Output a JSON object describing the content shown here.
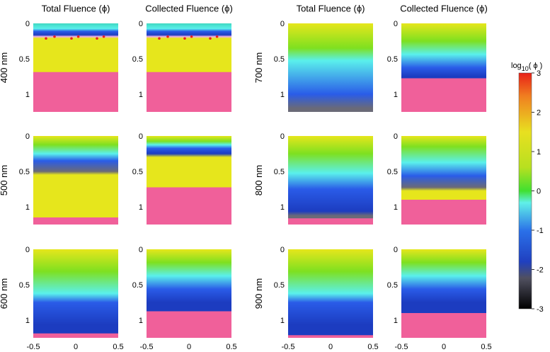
{
  "figure": {
    "column_titles": [
      "Total Fluence (ϕ)",
      "Collected Fluence (ϕ)",
      "Total Fluence (ϕ)",
      "Collected Fluence (ϕ)"
    ],
    "row_labels": [
      "400 nm",
      "500 nm",
      "600 nm",
      "700 nm",
      "800 nm",
      "900 nm"
    ],
    "y_ticks": [
      "0",
      "0.5",
      "1"
    ],
    "x_ticks": [
      "-0.5",
      "0",
      "0.5"
    ],
    "colorbar": {
      "label_base": "log",
      "label_sub": "10",
      "label_arg": "( ϕ )",
      "ticks": [
        "3",
        "2",
        "1",
        "0",
        "-1",
        "-2",
        "-3"
      ]
    }
  }
}
